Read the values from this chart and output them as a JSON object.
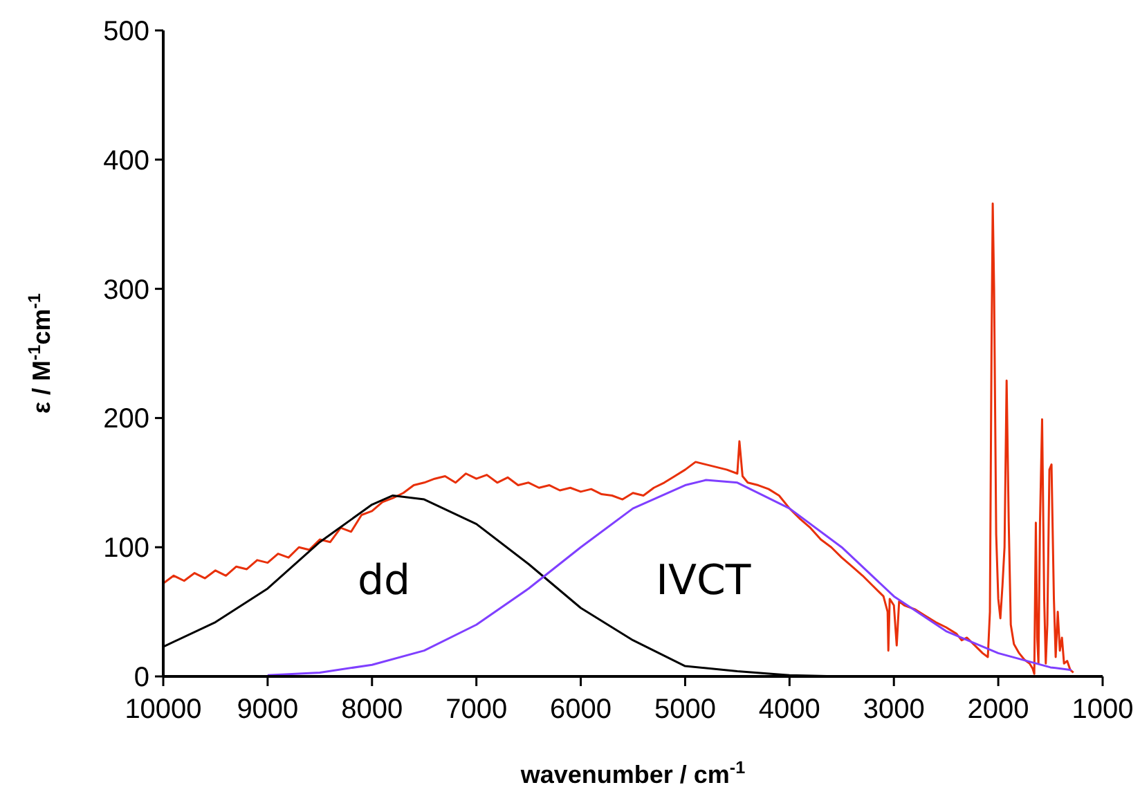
{
  "chart_data": {
    "type": "line",
    "xlabel": "wavenumber / cm$^{-1}$",
    "ylabel": "ε / M$^{-1}$cm$^{-1}$",
    "xlim": [
      10000,
      1000
    ],
    "xticks": [
      10000,
      9000,
      8000,
      7000,
      6000,
      5000,
      4000,
      3000,
      2000,
      1000
    ],
    "ylim": [
      0,
      500
    ],
    "yticks": [
      0,
      100,
      200,
      300,
      400,
      500
    ],
    "grid": false,
    "marker": "none",
    "line_style": "solid",
    "annotations": [
      "dd",
      "IVCT"
    ],
    "series": [
      {
        "color": "#e8300a",
        "x": [
          10000,
          9900,
          9800,
          9700,
          9600,
          9500,
          9400,
          9300,
          9200,
          9100,
          9000,
          8900,
          8800,
          8700,
          8600,
          8500,
          8400,
          8300,
          8200,
          8100,
          8000,
          7900,
          7800,
          7700,
          7600,
          7500,
          7400,
          7300,
          7200,
          7100,
          7000,
          6900,
          6800,
          6700,
          6600,
          6500,
          6400,
          6300,
          6200,
          6100,
          6000,
          5900,
          5800,
          5700,
          5600,
          5500,
          5400,
          5300,
          5200,
          5100,
          5000,
          4900,
          4800,
          4700,
          4600,
          4500,
          4480,
          4450,
          4400,
          4300,
          4200,
          4100,
          4000,
          3900,
          3800,
          3700,
          3600,
          3500,
          3400,
          3300,
          3200,
          3100,
          3060,
          3053,
          3040,
          3000,
          2973,
          2950,
          2900,
          2800,
          2700,
          2600,
          2500,
          2400,
          2350,
          2300,
          2200,
          2150,
          2100,
          2080,
          2065,
          2053,
          2040,
          2020,
          2000,
          1980,
          1960,
          1940,
          1920,
          1900,
          1880,
          1850,
          1800,
          1750,
          1700,
          1670,
          1655,
          1640,
          1627,
          1615,
          1600,
          1580,
          1560,
          1545,
          1530,
          1510,
          1490,
          1467,
          1450,
          1430,
          1410,
          1390,
          1370,
          1340,
          1310,
          1280
        ],
        "values": [
          72,
          78,
          74,
          80,
          76,
          82,
          78,
          85,
          83,
          90,
          88,
          95,
          92,
          100,
          98,
          106,
          104,
          115,
          112,
          125,
          128,
          135,
          138,
          142,
          148,
          150,
          153,
          155,
          150,
          157,
          153,
          156,
          150,
          154,
          148,
          150,
          146,
          148,
          144,
          146,
          143,
          145,
          141,
          140,
          137,
          142,
          140,
          146,
          150,
          155,
          160,
          166,
          164,
          162,
          160,
          157,
          182,
          155,
          150,
          148,
          145,
          140,
          130,
          122,
          115,
          106,
          100,
          92,
          85,
          78,
          70,
          62,
          50,
          20,
          60,
          55,
          24,
          58,
          55,
          52,
          47,
          42,
          38,
          33,
          28,
          30,
          22,
          18,
          15,
          50,
          250,
          366,
          300,
          110,
          60,
          45,
          70,
          100,
          229,
          120,
          40,
          25,
          18,
          13,
          10,
          6,
          2,
          119,
          30,
          10,
          120,
          199,
          60,
          10,
          40,
          160,
          164,
          60,
          15,
          50,
          20,
          30,
          10,
          12,
          5,
          3
        ]
      },
      {
        "color": "#000000",
        "x": [
          10000,
          9500,
          9000,
          8500,
          8000,
          7800,
          7500,
          7000,
          6500,
          6000,
          5500,
          5000,
          4500,
          4000,
          3500
        ],
        "values": [
          23,
          42,
          68,
          104,
          133,
          140,
          137,
          118,
          87,
          53,
          28,
          8,
          4,
          1,
          0
        ]
      },
      {
        "color": "#7f3fff",
        "x": [
          9000,
          8500,
          8000,
          7500,
          7000,
          6500,
          6000,
          5500,
          5000,
          4800,
          4500,
          4000,
          3500,
          3000,
          2500,
          2000,
          1500,
          1300
        ],
        "values": [
          1,
          3,
          9,
          20,
          40,
          68,
          100,
          130,
          148,
          152,
          150,
          130,
          100,
          62,
          35,
          18,
          7,
          5
        ]
      }
    ]
  }
}
